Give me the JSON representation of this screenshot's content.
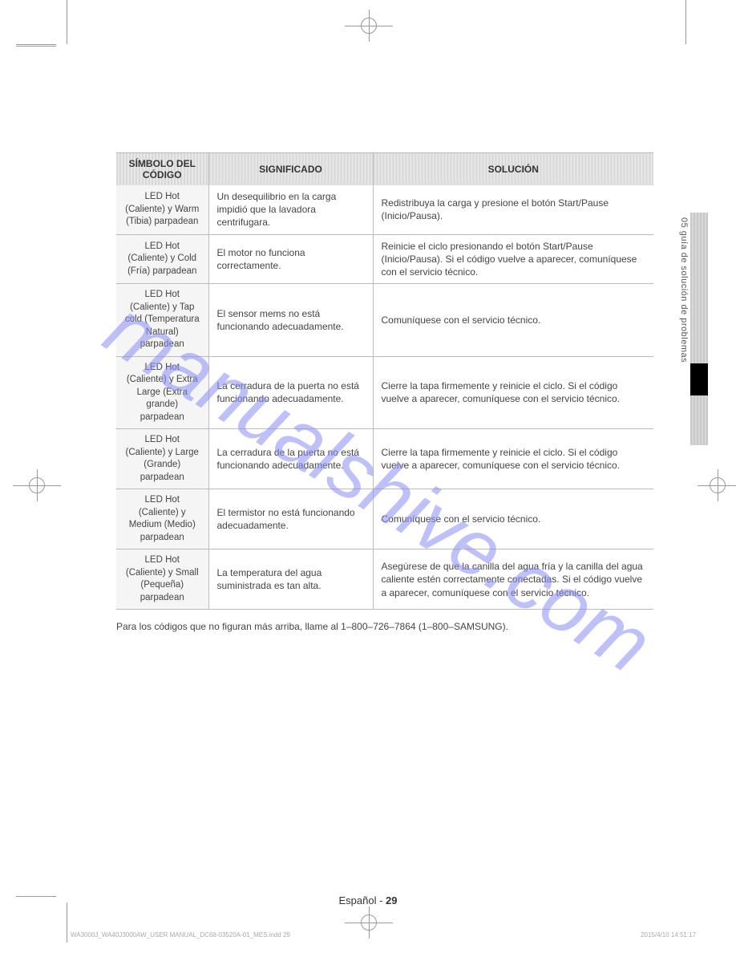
{
  "table": {
    "headers": {
      "symbol": "SÍMBOLO DEL CÓDIGO",
      "meaning": "SIGNIFICADO",
      "solution": "SOLUCIÓN"
    },
    "rows": [
      {
        "symbol": "LED Hot (Caliente) y Warm (Tibia) parpadean",
        "meaning": "Un desequilibrio en la carga impidió que la lavadora centrifugara.",
        "solution": "Redistribuya la carga y presione el botón Start/Pause (Inicio/Pausa)."
      },
      {
        "symbol": "LED Hot (Caliente) y Cold (Fría) parpadean",
        "meaning": "El motor no funciona correctamente.",
        "solution": "Reinicie el ciclo presionando el botón Start/Pause (Inicio/Pausa). Si el código vuelve a aparecer, comuníquese con el servicio técnico."
      },
      {
        "symbol": "LED Hot (Caliente) y Tap cold (Temperatura Natural) parpadean",
        "meaning": "El sensor mems no está funcionando adecuadamente.",
        "solution": "Comuníquese con el servicio técnico."
      },
      {
        "symbol": "LED Hot (Caliente) y Extra Large (Extra grande) parpadean",
        "meaning": "La cerradura de la puerta no está funcionando adecuadamente.",
        "solution": "Cierre la tapa firmemente y reinicie el ciclo. Si el código vuelve a aparecer, comuníquese con el servicio técnico."
      },
      {
        "symbol": "LED Hot (Caliente) y Large (Grande) parpadean",
        "meaning": "La cerradura de la puerta no está funcionando adecuadamente.",
        "solution": "Cierre la tapa firmemente y reinicie el ciclo. Si el código vuelve a aparecer, comuníquese con el servicio técnico."
      },
      {
        "symbol": "LED Hot (Caliente) y Medium (Medio) parpadean",
        "meaning": "El termistor no está funcionando adecuadamente.",
        "solution": "Comuníquese con el servicio técnico."
      },
      {
        "symbol": "LED Hot (Caliente) y Small (Pequeña) parpadean",
        "meaning": "La temperatura del agua suministrada es tan alta.",
        "solution": "Asegúrese de que la canilla del agua fría y la canilla del agua caliente estén correctamente conectadas. Si el código vuelve a aparecer, comuníquese con el servicio técnico."
      }
    ]
  },
  "footnote": "Para los códigos que no figuran más arriba, llame al 1–800–726–7864 (1–800–SAMSUNG).",
  "sidetab": "05 guía de solución de problemas",
  "footer": {
    "lang": "Español - ",
    "page": "29"
  },
  "imprint_left": "WA3000J_WA40J3000AW_USER MANUAL_DC68-03520A-01_MES.indd   29",
  "imprint_right": "2015/4/10   14:51:17",
  "watermark": {
    "text_color": "#8a8ef5",
    "opacity": 0.55
  }
}
